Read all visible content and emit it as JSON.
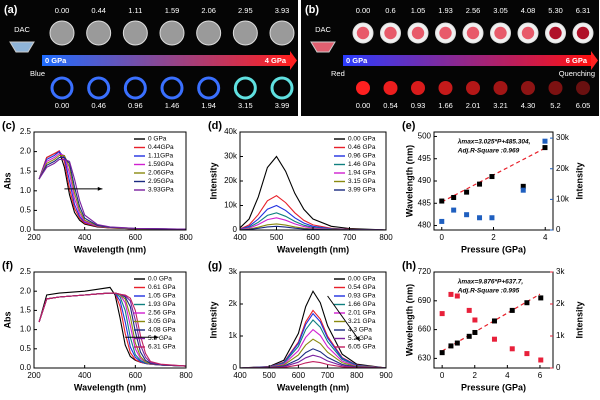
{
  "panels": [
    {
      "label": "(a)",
      "top_pressures": [
        "0.00",
        "0.44",
        "1.11",
        "1.59",
        "2.06",
        "2.95",
        "3.93"
      ],
      "dac": "DAC",
      "start": "0 GPa",
      "end": "4 GPa",
      "emission": "Blue",
      "bottom_pressures": [
        "0.00",
        "0.46",
        "0.96",
        "1.46",
        "1.94",
        "3.15",
        "3.99"
      ]
    },
    {
      "label": "(b)",
      "top_pressures": [
        "0.00",
        "0.6",
        "1.05",
        "1.93",
        "2.56",
        "3.05",
        "4.08",
        "5.30",
        "6.31"
      ],
      "dac": "DAC",
      "start": "0 GPa",
      "end": "6 GPa",
      "emission": "Red",
      "quench": "Quenching",
      "bottom_pressures": [
        "0.00",
        "0.54",
        "0.93",
        "1.66",
        "2.01",
        "3.21",
        "4.30",
        "5.2",
        "6.05"
      ]
    }
  ],
  "chart_data": [
    {
      "type": "line",
      "label": "(c)",
      "xlabel": "Wavelength (nm)",
      "ylabel": "Abs",
      "xlim": [
        200,
        800
      ],
      "xticks": [
        200,
        400,
        600,
        800
      ],
      "ylim": [
        0,
        2.5
      ],
      "yticks": [
        {
          "value": 0,
          "label": "0.0"
        },
        0.5,
        {
          "value": 1,
          "label": "1.0"
        },
        1.5,
        {
          "value": 2,
          "label": "2.0"
        },
        2.5
      ],
      "x": [
        220,
        250,
        280,
        300,
        320,
        340,
        360,
        380,
        400,
        450,
        500,
        600,
        800
      ],
      "series": [
        {
          "name": "0 GPa",
          "color": "#000000",
          "values": [
            1.3,
            1.85,
            1.95,
            2.0,
            1.6,
            0.9,
            0.45,
            0.25,
            0.15,
            0.08,
            0.05,
            0.03,
            0.02
          ]
        },
        {
          "name": "0.44GPa",
          "color": "#e8202a",
          "values": [
            1.3,
            1.85,
            1.95,
            2.02,
            1.75,
            1.05,
            0.55,
            0.3,
            0.17,
            0.09,
            0.05,
            0.03,
            0.02
          ]
        },
        {
          "name": "1.11GPa",
          "color": "#2030e0",
          "values": [
            1.3,
            1.8,
            1.9,
            2.0,
            1.85,
            1.25,
            0.65,
            0.35,
            0.2,
            0.1,
            0.06,
            0.03,
            0.02
          ]
        },
        {
          "name": "1.59GPa",
          "color": "#d020d0",
          "values": [
            1.3,
            1.75,
            1.85,
            1.95,
            1.9,
            1.45,
            0.8,
            0.42,
            0.22,
            0.1,
            0.06,
            0.03,
            0.02
          ]
        },
        {
          "name": "2.06GPa",
          "color": "#8a8a10",
          "values": [
            1.3,
            1.7,
            1.8,
            1.9,
            1.9,
            1.6,
            0.95,
            0.5,
            0.25,
            0.11,
            0.06,
            0.03,
            0.02
          ]
        },
        {
          "name": "2.95GPa",
          "color": "#1a2a80",
          "values": [
            1.3,
            1.65,
            1.75,
            1.85,
            1.85,
            1.7,
            1.1,
            0.6,
            0.3,
            0.12,
            0.07,
            0.04,
            0.02
          ]
        },
        {
          "name": "3.93GPa",
          "color": "#7a20a0",
          "values": [
            1.3,
            1.6,
            1.7,
            1.8,
            1.8,
            1.75,
            1.3,
            0.75,
            0.38,
            0.14,
            0.08,
            0.04,
            0.02
          ]
        }
      ]
    },
    {
      "type": "line",
      "label": "(d)",
      "xlabel": "Wavelength (nm)",
      "ylabel": "Intensity",
      "xlim": [
        400,
        800
      ],
      "xticks": [
        400,
        500,
        600,
        700,
        800
      ],
      "ylim": [
        0,
        40000
      ],
      "yticks": [
        0,
        {
          "value": 10000,
          "label": "10k"
        },
        {
          "value": 20000,
          "label": "20k"
        },
        {
          "value": 30000,
          "label": "30k"
        },
        {
          "value": 40000,
          "label": "40k"
        }
      ],
      "x": [
        400,
        425,
        450,
        475,
        500,
        525,
        550,
        575,
        600,
        650,
        700,
        800
      ],
      "series": [
        {
          "name": "0.00 GPa",
          "color": "#000000",
          "values": [
            900,
            4500,
            13500,
            25500,
            30000,
            24000,
            15000,
            8400,
            4500,
            1500,
            600,
            0
          ]
        },
        {
          "name": "0.46 GPa",
          "color": "#e8202a",
          "values": [
            420,
            2100,
            6300,
            11900,
            14000,
            11200,
            7000,
            3920,
            2100,
            700,
            280,
            0
          ]
        },
        {
          "name": "0.96 GPa",
          "color": "#2030e0",
          "values": [
            300,
            1500,
            4500,
            8500,
            10000,
            8000,
            5000,
            2800,
            1500,
            500,
            200,
            0
          ]
        },
        {
          "name": "1.46 GPa",
          "color": "#108080",
          "values": [
            210,
            1050,
            3150,
            5950,
            7000,
            5600,
            3500,
            1960,
            1050,
            350,
            140,
            0
          ]
        },
        {
          "name": "1.94 GPa",
          "color": "#d020d0",
          "values": [
            150,
            750,
            2250,
            4250,
            5000,
            4000,
            2500,
            1400,
            750,
            250,
            100,
            0
          ]
        },
        {
          "name": "3.15 GPa",
          "color": "#8a8a10",
          "values": [
            75,
            375,
            1125,
            2125,
            2500,
            2000,
            1250,
            700,
            375,
            125,
            50,
            0
          ]
        },
        {
          "name": "3.99 GPa",
          "color": "#1a2a80",
          "values": [
            45,
            225,
            675,
            1275,
            1500,
            1200,
            750,
            420,
            225,
            75,
            30,
            0
          ]
        }
      ]
    },
    {
      "type": "scatter",
      "label": "(e)",
      "xlabel": "Pressure (GPa)",
      "ylabel": "Wavelength (nm)",
      "y2label": "Intensity",
      "y2color": "#1f5fbf",
      "xlim": [
        -0.3,
        4.3
      ],
      "xticks": [
        0,
        2,
        4
      ],
      "ylim": [
        479,
        501
      ],
      "yticks": [
        480,
        485,
        490,
        495,
        500
      ],
      "y2lim": [
        0,
        32000
      ],
      "y2ticks": [
        0,
        {
          "value": 10000,
          "label": "10k"
        },
        {
          "value": 20000,
          "label": "20k"
        },
        {
          "value": 30000,
          "label": "30k"
        }
      ],
      "annotations": [
        "λmax=3.025*P+485.304,",
        "Adj.R-Square :0.969"
      ],
      "annotation_color": "#e8202a",
      "fit": {
        "color": "#e8202a",
        "x": [
          0,
          4
        ],
        "values": [
          485.304,
          497.404
        ]
      },
      "series": [
        {
          "color": "#000000",
          "x": [
            0,
            0.46,
            0.96,
            1.46,
            1.94,
            3.15,
            3.99
          ],
          "values": [
            485.5,
            486.3,
            487.5,
            489.3,
            491,
            488.8,
            497.5
          ]
        },
        {
          "color": "#1f5fbf",
          "axis": "y2",
          "x": [
            0,
            0.46,
            0.96,
            1.46,
            1.94,
            3.15,
            3.99
          ],
          "values": [
            2800,
            6500,
            5000,
            4000,
            4000,
            13000,
            29000
          ]
        }
      ]
    },
    {
      "type": "line",
      "label": "(f)",
      "xlabel": "Wavelength (nm)",
      "ylabel": "Abs",
      "xlim": [
        200,
        800
      ],
      "xticks": [
        200,
        400,
        600,
        800
      ],
      "ylim": [
        0,
        2.5
      ],
      "yticks": [
        {
          "value": 0,
          "label": "0.0"
        },
        0.5,
        {
          "value": 1,
          "label": "1.0"
        },
        1.5,
        {
          "value": 2,
          "label": "2.0"
        },
        2.5
      ],
      "x": [
        220,
        250,
        300,
        400,
        450,
        500,
        520,
        540,
        560,
        580,
        600,
        620,
        640,
        660,
        700,
        800
      ],
      "series": [
        {
          "name": "0.0 GPa",
          "color": "#000000",
          "values": [
            1.2,
            1.9,
            1.95,
            2.0,
            2.05,
            2.1,
            1.9,
            1.3,
            0.6,
            0.3,
            0.2,
            0.15,
            0.12,
            0.1,
            0.08,
            0.05
          ]
        },
        {
          "name": "0.61 GPa",
          "color": "#e8202a",
          "values": [
            1.2,
            1.8,
            1.85,
            1.9,
            1.93,
            1.95,
            1.95,
            1.6,
            0.9,
            0.4,
            0.22,
            0.15,
            0.12,
            0.1,
            0.08,
            0.05
          ]
        },
        {
          "name": "1.05 GPa",
          "color": "#2030e0",
          "values": [
            1.2,
            1.8,
            1.85,
            1.9,
            1.93,
            1.95,
            1.95,
            1.75,
            1.2,
            0.55,
            0.28,
            0.17,
            0.12,
            0.1,
            0.08,
            0.05
          ]
        },
        {
          "name": "1.93 GPa",
          "color": "#108080",
          "values": [
            1.2,
            1.8,
            1.85,
            1.9,
            1.93,
            1.95,
            1.95,
            1.85,
            1.5,
            0.8,
            0.35,
            0.2,
            0.13,
            0.1,
            0.08,
            0.05
          ]
        },
        {
          "name": "2.56 GPa",
          "color": "#d020d0",
          "values": [
            1.2,
            1.8,
            1.85,
            1.9,
            1.93,
            1.95,
            1.95,
            1.9,
            1.7,
            1.1,
            0.5,
            0.25,
            0.15,
            0.1,
            0.08,
            0.05
          ]
        },
        {
          "name": "3.05 GPa",
          "color": "#8a8a10",
          "values": [
            1.2,
            1.8,
            1.85,
            1.9,
            1.93,
            1.95,
            1.95,
            1.9,
            1.8,
            1.35,
            0.65,
            0.3,
            0.16,
            0.11,
            0.08,
            0.05
          ]
        },
        {
          "name": "4.08 GPa",
          "color": "#1a2a80",
          "values": [
            1.2,
            1.8,
            1.85,
            1.9,
            1.93,
            1.95,
            1.95,
            1.92,
            1.85,
            1.6,
            0.95,
            0.42,
            0.2,
            0.12,
            0.08,
            0.05
          ]
        },
        {
          "name": "5.3 GPa",
          "color": "#7a20a0",
          "values": [
            1.2,
            1.8,
            1.85,
            1.9,
            1.93,
            1.95,
            1.95,
            1.92,
            1.88,
            1.75,
            1.25,
            0.6,
            0.28,
            0.14,
            0.09,
            0.05
          ]
        },
        {
          "name": "6.31 GPa",
          "color": "#c02060",
          "values": [
            1.2,
            1.8,
            1.85,
            1.9,
            1.93,
            1.95,
            1.95,
            1.92,
            1.9,
            1.82,
            1.5,
            0.85,
            0.38,
            0.17,
            0.1,
            0.05
          ]
        }
      ]
    },
    {
      "type": "line",
      "label": "(g)",
      "xlabel": "Wavelength (nm)",
      "ylabel": "Intensity",
      "xlim": [
        400,
        900
      ],
      "xticks": [
        400,
        500,
        600,
        700,
        800,
        900
      ],
      "ylim": [
        0,
        3000
      ],
      "yticks": [
        0,
        {
          "value": 1000,
          "label": "1k"
        },
        {
          "value": 2000,
          "label": "2k"
        },
        {
          "value": 3000,
          "label": "3k"
        }
      ],
      "x": [
        400,
        500,
        550,
        600,
        625,
        650,
        675,
        700,
        750,
        800,
        900
      ],
      "series": [
        {
          "name": "0.00 GPa",
          "color": "#000000",
          "values": [
            0,
            48,
            240,
            1080,
            1920,
            2400,
            2040,
            1320,
            432,
            120,
            0
          ]
        },
        {
          "name": "0.54 GPa",
          "color": "#e8202a",
          "values": [
            0,
            36,
            180,
            810,
            1440,
            1800,
            1530,
            990,
            324,
            90,
            0
          ]
        },
        {
          "name": "0.93 GPa",
          "color": "#2030e0",
          "values": [
            0,
            34,
            170,
            765,
            1360,
            1700,
            1445,
            935,
            306,
            85,
            0
          ]
        },
        {
          "name": "1.66 GPa",
          "color": "#108080",
          "values": [
            0,
            30,
            150,
            675,
            1200,
            1500,
            1275,
            825,
            270,
            75,
            0
          ]
        },
        {
          "name": "2.01 GPa",
          "color": "#d020d0",
          "values": [
            0,
            24,
            120,
            540,
            960,
            1200,
            1020,
            660,
            216,
            60,
            0
          ]
        },
        {
          "name": "3.21 GPa",
          "color": "#8a8a10",
          "values": [
            0,
            18,
            90,
            405,
            720,
            900,
            765,
            495,
            162,
            45,
            0
          ]
        },
        {
          "name": "4.3 GPa",
          "color": "#1a2a80",
          "values": [
            0,
            12,
            60,
            270,
            480,
            600,
            510,
            330,
            108,
            30,
            0
          ]
        },
        {
          "name": "5.2 GPa",
          "color": "#7a20a0",
          "values": [
            0,
            8,
            40,
            180,
            320,
            400,
            340,
            220,
            72,
            20,
            0
          ]
        },
        {
          "name": "6.05 GPa",
          "color": "#c02060",
          "values": [
            0,
            4,
            20,
            90,
            160,
            200,
            170,
            110,
            36,
            10,
            0
          ]
        }
      ]
    },
    {
      "type": "scatter",
      "label": "(h)",
      "xlabel": "Pressure (GPa)",
      "ylabel": "Wavelength (nm)",
      "y2label": "Intensity",
      "y2color": "#e8203a",
      "xlim": [
        -0.5,
        6.8
      ],
      "xticks": [
        0,
        2,
        4,
        6
      ],
      "ylim": [
        620,
        720
      ],
      "yticks": [
        630,
        660,
        690,
        720
      ],
      "y2lim": [
        0,
        3000
      ],
      "y2ticks": [
        0,
        {
          "value": 1000,
          "label": "1k"
        },
        {
          "value": 2000,
          "label": "2k"
        },
        {
          "value": 3000,
          "label": "3k"
        }
      ],
      "annotations": [
        "λmax=9.876*P+637.7,",
        "Adj.R-Square :0.995"
      ],
      "annotation_color": "#e8202a",
      "fit": {
        "color": "#e8202a",
        "x": [
          0,
          6
        ],
        "values": [
          637.7,
          696.956
        ]
      },
      "series": [
        {
          "color": "#000000",
          "x": [
            0,
            0.54,
            0.93,
            1.66,
            2.01,
            3.21,
            4.3,
            5.2,
            6.05
          ],
          "values": [
            636,
            643,
            646,
            653,
            657,
            669,
            680,
            688,
            693
          ]
        },
        {
          "color": "#e8203a",
          "axis": "y2",
          "x": [
            0,
            0.54,
            0.93,
            1.66,
            2.01,
            3.21,
            4.3,
            5.2,
            6.05
          ],
          "values": [
            1700,
            2300,
            2250,
            1800,
            1500,
            900,
            600,
            450,
            250
          ]
        }
      ]
    }
  ]
}
